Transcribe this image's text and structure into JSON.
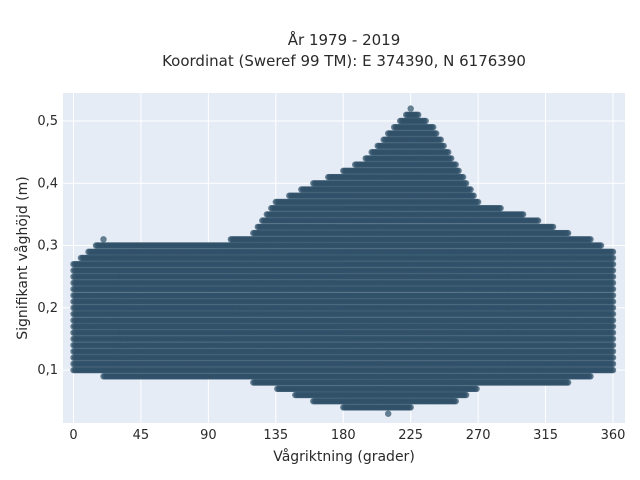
{
  "chart_data": {
    "type": "scatter",
    "title": "År 1979 - 2019",
    "subtitle": "Koordinat (Sweref 99 TM): E 374390, N 6176390",
    "xlabel": "Vågriktning (grader)",
    "ylabel": "Signifikant våghöjd (m)",
    "xlim": [
      -7,
      368
    ],
    "ylim": [
      0.015,
      0.545
    ],
    "x_ticks": [
      0,
      45,
      90,
      135,
      180,
      225,
      270,
      315,
      360
    ],
    "y_ticks": [
      0.1,
      0.2,
      0.3,
      0.4,
      0.5
    ],
    "x_tick_labels": [
      "0",
      "45",
      "90",
      "135",
      "180",
      "225",
      "270",
      "315",
      "360"
    ],
    "y_tick_labels": [
      "0,1",
      "0,2",
      "0,3",
      "0,4",
      "0,5"
    ],
    "grid": true,
    "legend": "none",
    "marker_color": "#2f5168",
    "background_color": "#e5ecf6",
    "envelope": {
      "direction_deg": [
        0,
        20,
        45,
        90,
        120,
        135,
        160,
        180,
        195,
        210,
        225,
        240,
        255,
        270,
        300,
        330,
        345,
        360
      ],
      "min_height_m": [
        0.1,
        0.09,
        0.09,
        0.09,
        0.08,
        0.07,
        0.05,
        0.04,
        0.04,
        0.03,
        0.04,
        0.05,
        0.05,
        0.07,
        0.07,
        0.08,
        0.09,
        0.1
      ],
      "max_height_m": [
        0.27,
        0.31,
        0.3,
        0.3,
        0.32,
        0.37,
        0.4,
        0.42,
        0.44,
        0.48,
        0.52,
        0.49,
        0.43,
        0.37,
        0.35,
        0.32,
        0.31,
        0.29
      ]
    },
    "point_spacing_deg": 1,
    "point_spacing_m": 0.01
  }
}
